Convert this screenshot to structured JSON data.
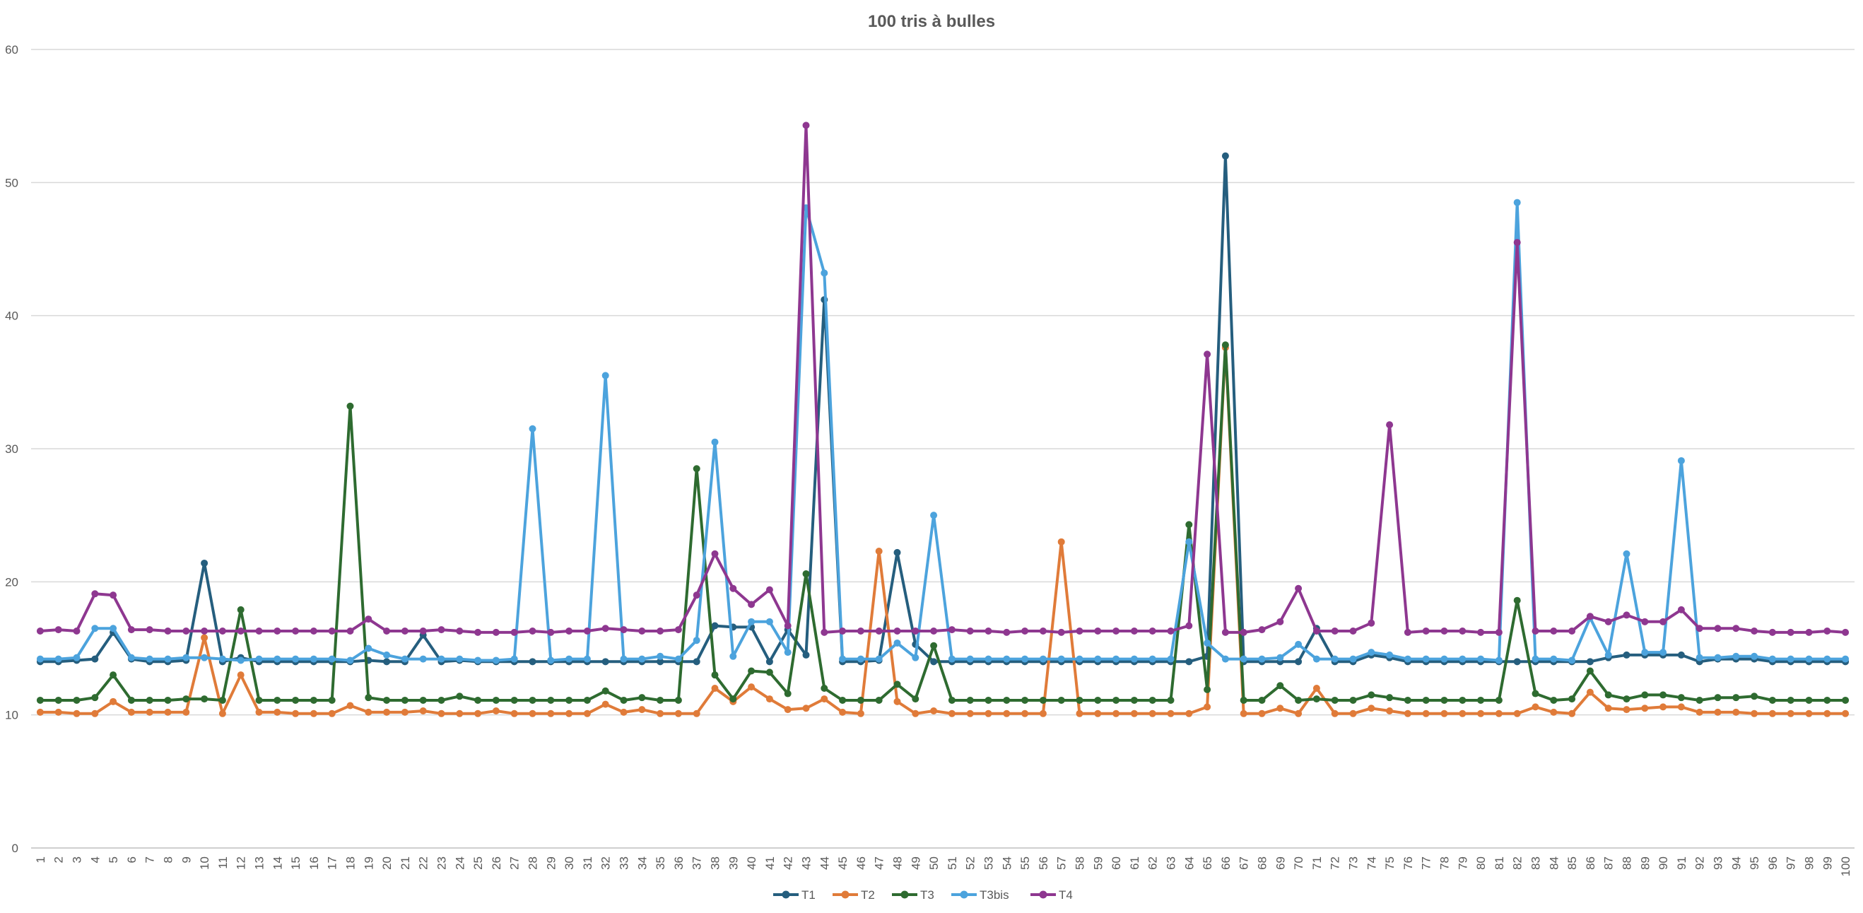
{
  "chart_data": {
    "type": "line",
    "title": "100 tris à bulles",
    "xlabel": "",
    "ylabel": "",
    "ylim": [
      0,
      60
    ],
    "yticks": [
      0,
      10,
      20,
      30,
      40,
      50,
      60
    ],
    "grid": true,
    "legend_position": "bottom",
    "categories": [
      "1",
      "2",
      "3",
      "4",
      "5",
      "6",
      "7",
      "8",
      "9",
      "10",
      "11",
      "12",
      "13",
      "14",
      "15",
      "16",
      "17",
      "18",
      "19",
      "20",
      "21",
      "22",
      "23",
      "24",
      "25",
      "26",
      "27",
      "28",
      "29",
      "30",
      "31",
      "32",
      "33",
      "34",
      "35",
      "36",
      "37",
      "38",
      "39",
      "40",
      "41",
      "42",
      "43",
      "44",
      "45",
      "46",
      "47",
      "48",
      "49",
      "50",
      "51",
      "52",
      "53",
      "54",
      "55",
      "56",
      "57",
      "58",
      "59",
      "60",
      "61",
      "62",
      "63",
      "64",
      "65",
      "66",
      "67",
      "68",
      "69",
      "70",
      "71",
      "72",
      "73",
      "74",
      "75",
      "76",
      "77",
      "78",
      "79",
      "80",
      "81",
      "82",
      "83",
      "84",
      "85",
      "86",
      "87",
      "88",
      "89",
      "90",
      "91",
      "92",
      "93",
      "94",
      "95",
      "96",
      "97",
      "98",
      "99",
      "100"
    ],
    "series": [
      {
        "name": "T1",
        "color": "#255E7E",
        "values": [
          14,
          14,
          14.1,
          14.2,
          16.2,
          14.2,
          14,
          14,
          14.1,
          21.4,
          14,
          14.3,
          14,
          14,
          14,
          14,
          14,
          14,
          14.1,
          14,
          14,
          16,
          14,
          14.1,
          14,
          14,
          14,
          14,
          14,
          14,
          14,
          14,
          14,
          14,
          14,
          14,
          14,
          16.7,
          16.6,
          16.6,
          14,
          16.4,
          14.5,
          41.2,
          14,
          14,
          14.1,
          22.2,
          15.3,
          14,
          14,
          14,
          14,
          14,
          14,
          14,
          14,
          14,
          14,
          14,
          14,
          14,
          14,
          14,
          14.4,
          52,
          14,
          14,
          14,
          14,
          16.5,
          14,
          14,
          14.5,
          14.3,
          14,
          14,
          14,
          14,
          14,
          14,
          14,
          14,
          14,
          14,
          14,
          14.3,
          14.5,
          14.5,
          14.5,
          14.5,
          14,
          14.2,
          14.2,
          14.2,
          14,
          14,
          14,
          14,
          14
        ]
      },
      {
        "name": "T2",
        "color": "#E07B39",
        "values": [
          10.2,
          10.2,
          10.1,
          10.1,
          11,
          10.2,
          10.2,
          10.2,
          10.2,
          15.8,
          10.1,
          13,
          10.2,
          10.2,
          10.1,
          10.1,
          10.1,
          10.7,
          10.2,
          10.2,
          10.2,
          10.3,
          10.1,
          10.1,
          10.1,
          10.3,
          10.1,
          10.1,
          10.1,
          10.1,
          10.1,
          10.8,
          10.2,
          10.4,
          10.1,
          10.1,
          10.1,
          12,
          11,
          12.1,
          11.2,
          10.4,
          10.5,
          11.2,
          10.2,
          10.1,
          22.3,
          11,
          10.1,
          10.3,
          10.1,
          10.1,
          10.1,
          10.1,
          10.1,
          10.1,
          23,
          10.1,
          10.1,
          10.1,
          10.1,
          10.1,
          10.1,
          10.1,
          10.6,
          37.6,
          10.1,
          10.1,
          10.5,
          10.1,
          12,
          10.1,
          10.1,
          10.5,
          10.3,
          10.1,
          10.1,
          10.1,
          10.1,
          10.1,
          10.1,
          10.1,
          10.6,
          10.2,
          10.1,
          11.7,
          10.5,
          10.4,
          10.5,
          10.6,
          10.6,
          10.2,
          10.2,
          10.2,
          10.1,
          10.1,
          10.1,
          10.1,
          10.1,
          10.1
        ]
      },
      {
        "name": "T3",
        "color": "#2E6B30",
        "values": [
          11.1,
          11.1,
          11.1,
          11.3,
          13,
          11.1,
          11.1,
          11.1,
          11.2,
          11.2,
          11.1,
          17.9,
          11.1,
          11.1,
          11.1,
          11.1,
          11.1,
          33.2,
          11.3,
          11.1,
          11.1,
          11.1,
          11.1,
          11.4,
          11.1,
          11.1,
          11.1,
          11.1,
          11.1,
          11.1,
          11.1,
          11.8,
          11.1,
          11.3,
          11.1,
          11.1,
          28.5,
          13,
          11.2,
          13.3,
          13.2,
          11.6,
          20.6,
          12,
          11.1,
          11.1,
          11.1,
          12.3,
          11.2,
          15.2,
          11.1,
          11.1,
          11.1,
          11.1,
          11.1,
          11.1,
          11.1,
          11.1,
          11.1,
          11.1,
          11.1,
          11.1,
          11.1,
          24.3,
          11.9,
          37.8,
          11.1,
          11.1,
          12.2,
          11.1,
          11.2,
          11.1,
          11.1,
          11.5,
          11.3,
          11.1,
          11.1,
          11.1,
          11.1,
          11.1,
          11.1,
          18.6,
          11.6,
          11.1,
          11.2,
          13.3,
          11.5,
          11.2,
          11.5,
          11.5,
          11.3,
          11.1,
          11.3,
          11.3,
          11.4,
          11.1,
          11.1,
          11.1,
          11.1,
          11.1
        ]
      },
      {
        "name": "T3bis",
        "color": "#4CA3DD",
        "values": [
          14.2,
          14.2,
          14.3,
          16.5,
          16.5,
          14.3,
          14.2,
          14.2,
          14.3,
          14.3,
          14.2,
          14.1,
          14.2,
          14.2,
          14.2,
          14.2,
          14.2,
          14.1,
          15,
          14.5,
          14.2,
          14.2,
          14.2,
          14.2,
          14.1,
          14.1,
          14.2,
          31.5,
          14.1,
          14.2,
          14.2,
          35.5,
          14.2,
          14.2,
          14.4,
          14.2,
          15.6,
          30.5,
          14.4,
          17,
          17,
          14.7,
          48.1,
          43.2,
          14.2,
          14.2,
          14.2,
          15.4,
          14.3,
          25,
          14.2,
          14.2,
          14.2,
          14.2,
          14.2,
          14.2,
          14.2,
          14.2,
          14.2,
          14.2,
          14.2,
          14.2,
          14.2,
          23,
          15.4,
          14.2,
          14.2,
          14.2,
          14.3,
          15.3,
          14.2,
          14.2,
          14.2,
          14.7,
          14.5,
          14.2,
          14.2,
          14.2,
          14.2,
          14.2,
          14.1,
          48.5,
          14.2,
          14.2,
          14.1,
          17.3,
          14.5,
          22.1,
          14.7,
          14.7,
          29.1,
          14.3,
          14.3,
          14.4,
          14.4,
          14.2,
          14.2,
          14.2,
          14.2,
          14.2
        ]
      },
      {
        "name": "T4",
        "color": "#8E3790",
        "values": [
          16.3,
          16.4,
          16.3,
          19.1,
          19,
          16.4,
          16.4,
          16.3,
          16.3,
          16.3,
          16.3,
          16.3,
          16.3,
          16.3,
          16.3,
          16.3,
          16.3,
          16.3,
          17.2,
          16.3,
          16.3,
          16.3,
          16.4,
          16.3,
          16.2,
          16.2,
          16.2,
          16.3,
          16.2,
          16.3,
          16.3,
          16.5,
          16.4,
          16.3,
          16.3,
          16.4,
          19,
          22.1,
          19.5,
          18.3,
          19.4,
          16.7,
          54.3,
          16.2,
          16.3,
          16.3,
          16.3,
          16.3,
          16.3,
          16.3,
          16.4,
          16.3,
          16.3,
          16.2,
          16.3,
          16.3,
          16.2,
          16.3,
          16.3,
          16.3,
          16.3,
          16.3,
          16.3,
          16.7,
          37.1,
          16.2,
          16.2,
          16.4,
          17,
          19.5,
          16.3,
          16.3,
          16.3,
          16.9,
          31.8,
          16.2,
          16.3,
          16.3,
          16.3,
          16.2,
          16.2,
          45.5,
          16.3,
          16.3,
          16.3,
          17.4,
          17,
          17.5,
          17,
          17,
          17.9,
          16.5,
          16.5,
          16.5,
          16.3,
          16.2,
          16.2,
          16.2,
          16.3,
          16.2
        ]
      }
    ]
  }
}
